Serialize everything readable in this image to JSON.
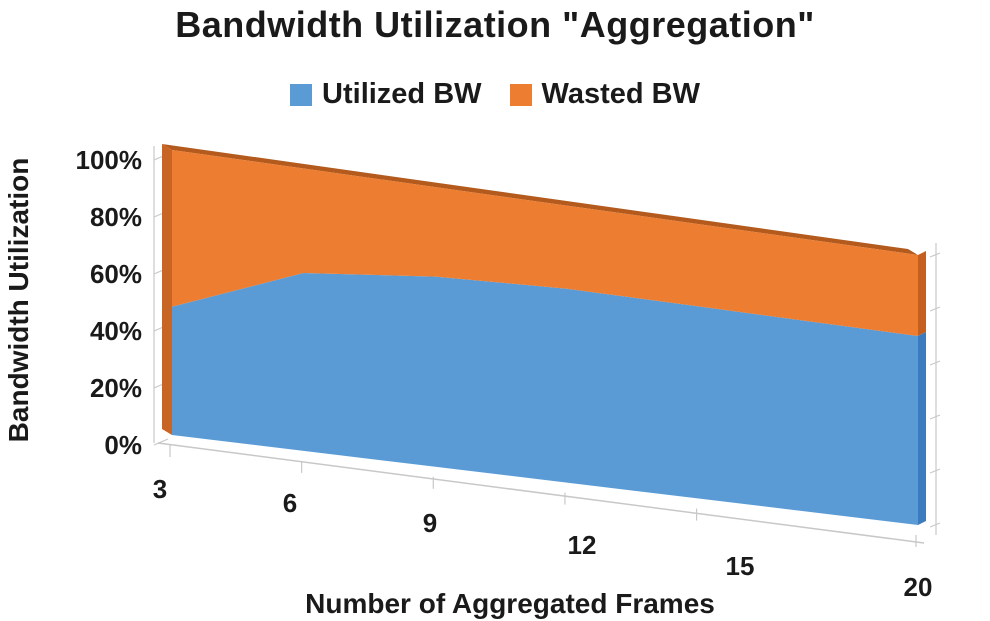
{
  "chart_data": {
    "type": "area",
    "subtype": "3d-stacked-percent",
    "title": "Bandwidth Utilization \"Aggregation\"",
    "xlabel": "Number of Aggregated Frames",
    "ylabel": "Bandwidth Utilization",
    "categories": [
      "3",
      "6",
      "9",
      "12",
      "15",
      "20"
    ],
    "x": [
      3,
      6,
      9,
      12,
      15,
      20
    ],
    "ylim": [
      0,
      100
    ],
    "yticks": [
      "0%",
      "20%",
      "40%",
      "60%",
      "80%",
      "100%"
    ],
    "series": [
      {
        "name": "Utilized BW",
        "values": [
          45,
          63,
          68,
          70,
          70,
          70
        ],
        "color": "#5b9bd5"
      },
      {
        "name": "Wasted BW",
        "values": [
          55,
          37,
          32,
          30,
          30,
          30
        ],
        "color": "#ed7d31"
      }
    ],
    "legend_position": "top",
    "grid": false
  }
}
